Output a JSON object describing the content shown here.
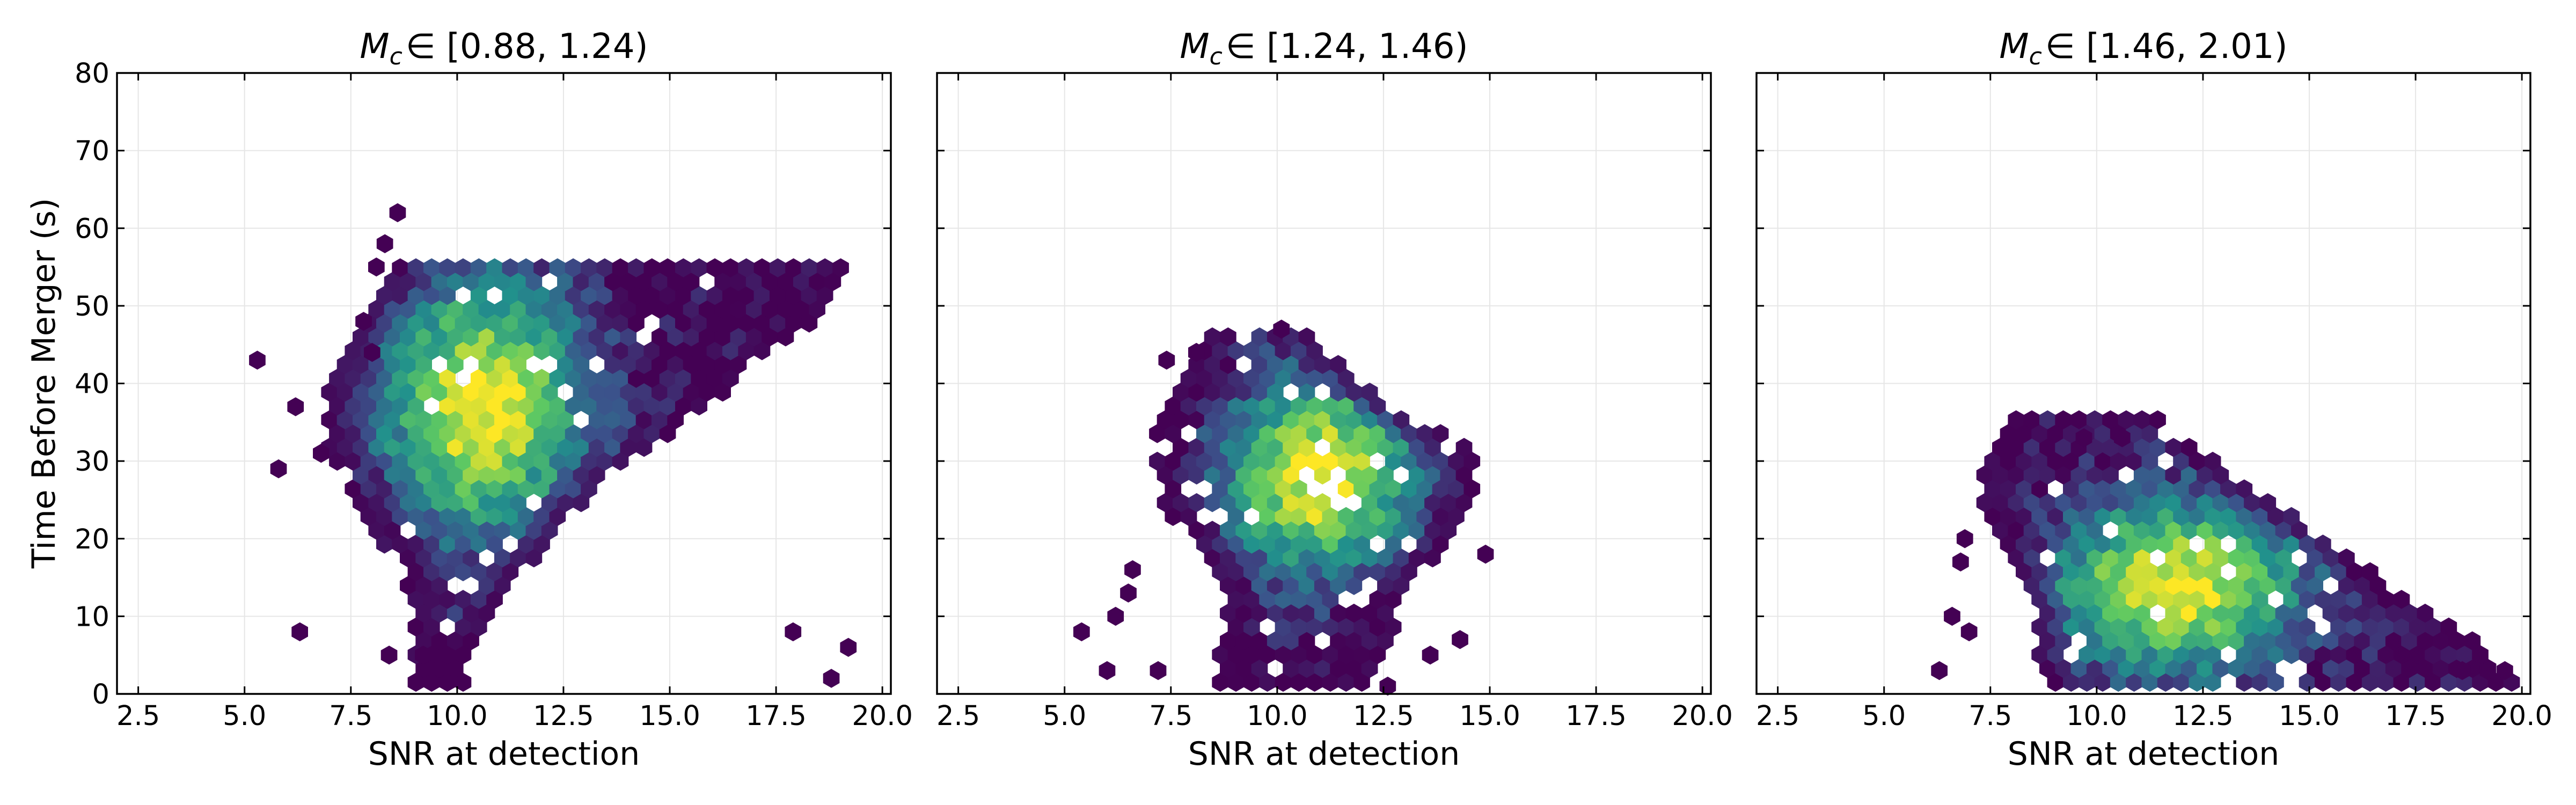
{
  "chart_data": {
    "type": "hexbin",
    "figure": "Time before merger vs SNR at detection, binned by chirp mass",
    "xlabel": "SNR at detection",
    "ylabel": "Time Before Merger (s)",
    "xlim": [
      2.0,
      20.2
    ],
    "ylim": [
      0,
      80
    ],
    "xticks": [
      2.5,
      5.0,
      7.5,
      10.0,
      12.5,
      15.0,
      17.5,
      20.0
    ],
    "xtick_labels": [
      "2.5",
      "5.0",
      "7.5",
      "10.0",
      "12.5",
      "15.0",
      "17.5",
      "20.0"
    ],
    "yticks": [
      0,
      10,
      20,
      30,
      40,
      50,
      60,
      70,
      80
    ],
    "ytick_labels": [
      "0",
      "10",
      "20",
      "30",
      "40",
      "50",
      "60",
      "70",
      "80"
    ],
    "grid": true,
    "shared_y": true,
    "colormap": [
      "#440154",
      "#3b528b",
      "#21918c",
      "#5ec962",
      "#fde725"
    ],
    "panels": [
      {
        "title_symbol": "M",
        "title_sub": "c",
        "title_range": "∈ [0.88, 1.24)",
        "distribution": {
          "x_lo": [
            9.0,
            9.0,
            9.0,
            8.6,
            8.0,
            7.4,
            7.0,
            6.8,
            7.0,
            7.5,
            8.0,
            8.5
          ],
          "x_hi": [
            10.2,
            10.5,
            11.0,
            11.8,
            12.5,
            13.2,
            14.5,
            15.8,
            17.0,
            18.2,
            19.0,
            19.3
          ],
          "peak": [
            10.6,
            37
          ],
          "spread": [
            1.7,
            12
          ],
          "scatter_points": [
            [
              5.3,
              43
            ],
            [
              6.2,
              37
            ],
            [
              6.3,
              8
            ],
            [
              5.8,
              29
            ],
            [
              6.8,
              31
            ],
            [
              8.6,
              62
            ],
            [
              8.3,
              58
            ],
            [
              8.1,
              55
            ],
            [
              7.8,
              48
            ],
            [
              8.0,
              44
            ],
            [
              18.8,
              2
            ],
            [
              19.2,
              6
            ],
            [
              17.9,
              8
            ],
            [
              8.4,
              5
            ],
            [
              9.2,
              5
            ]
          ]
        }
      },
      {
        "title_symbol": "M",
        "title_sub": "c",
        "title_range": "∈ [1.24, 1.46)",
        "distribution": {
          "x_lo": [
            8.6,
            8.6,
            8.7,
            8.6,
            7.6,
            7.2,
            7.0,
            7.4,
            7.8,
            8.3
          ],
          "x_hi": [
            12.1,
            12.6,
            13.0,
            13.5,
            14.3,
            14.7,
            14.6,
            12.8,
            11.6,
            10.9
          ],
          "peak": [
            11.0,
            28
          ],
          "spread": [
            1.6,
            9
          ],
          "scatter_points": [
            [
              5.4,
              8
            ],
            [
              6.2,
              10
            ],
            [
              6.0,
              3
            ],
            [
              7.2,
              3
            ],
            [
              6.6,
              16
            ],
            [
              6.5,
              13
            ],
            [
              7.4,
              43
            ],
            [
              8.1,
              44
            ],
            [
              14.9,
              18
            ],
            [
              14.3,
              7
            ],
            [
              13.6,
              5
            ],
            [
              10.1,
              47
            ],
            [
              12.6,
              1
            ]
          ]
        }
      },
      {
        "title_symbol": "M",
        "title_sub": "c",
        "title_range": "∈ [1.46, 2.01)",
        "distribution": {
          "x_lo": [
            8.7,
            8.5,
            8.4,
            8.0,
            7.6,
            7.2,
            7.5,
            8.0
          ],
          "x_hi": [
            19.8,
            19.0,
            17.5,
            16.3,
            15.0,
            13.5,
            12.5,
            11.5
          ],
          "peak": [
            11.9,
            14
          ],
          "spread": [
            2.1,
            8
          ],
          "scatter_points": [
            [
              6.3,
              3
            ],
            [
              6.6,
              10
            ],
            [
              7.0,
              8
            ],
            [
              6.9,
              20
            ],
            [
              6.8,
              17
            ],
            [
              10.6,
              33
            ],
            [
              9.7,
              33
            ],
            [
              19.6,
              3
            ],
            [
              19.2,
              3
            ],
            [
              18.6,
              3
            ]
          ]
        }
      }
    ]
  }
}
